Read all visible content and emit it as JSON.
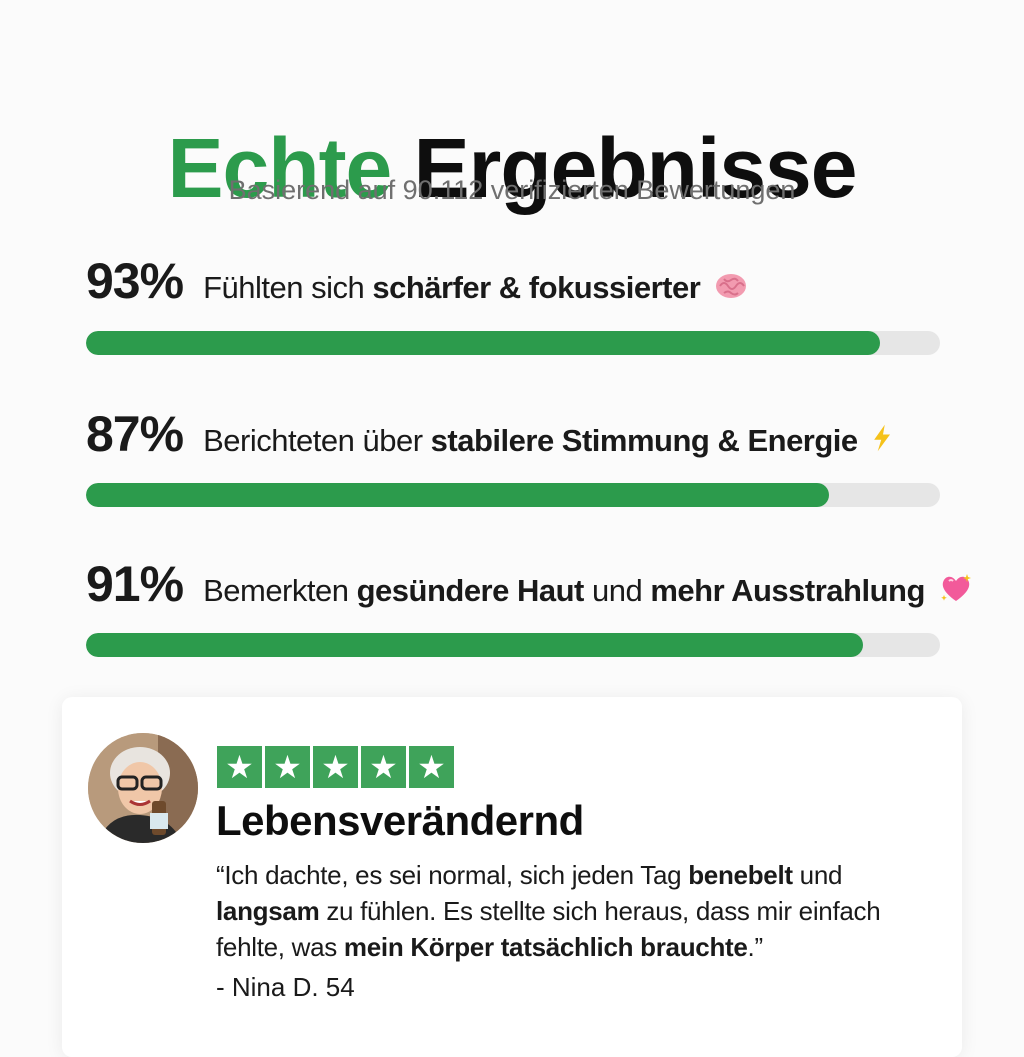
{
  "header": {
    "title_green": "Echte",
    "title_dark": "Ergebnisse",
    "subtitle": "Basierend auf 90.112 verifizierten Bewertungen"
  },
  "stats": [
    {
      "percent_label": "93%",
      "value": 0.93,
      "text_1": "Fühlten sich ",
      "bold_1": "schärfer & fokussierter",
      "icon": "brain-icon"
    },
    {
      "percent_label": "87%",
      "value": 0.87,
      "text_1": "Berichteten über ",
      "bold_1": "stabilere Stimmung & Energie",
      "icon": "lightning-icon"
    },
    {
      "percent_label": "91%",
      "value": 0.91,
      "text_1": "Bemerkten ",
      "bold_1": "gesündere Haut",
      "text_2": " und ",
      "bold_2": "mehr Ausstrahlung",
      "icon": "sparkling-heart-icon"
    }
  ],
  "colors": {
    "accent": "#2c9b4c",
    "track": "#e6e6e6",
    "star": "#3fa35a"
  },
  "review": {
    "rating": 5,
    "title": "Lebensverändernd",
    "quote_p1": "“Ich dachte, es sei normal, sich jeden Tag ",
    "quote_b1": "benebelt",
    "quote_p2": " und ",
    "quote_b2": "langsam",
    "quote_p3": " zu fühlen. Es stellte sich heraus, dass mir einfach fehlte, was ",
    "quote_b3": "mein Körper tatsächlich brauchte",
    "quote_p4": ".”",
    "author": "- Nina D. 54"
  }
}
